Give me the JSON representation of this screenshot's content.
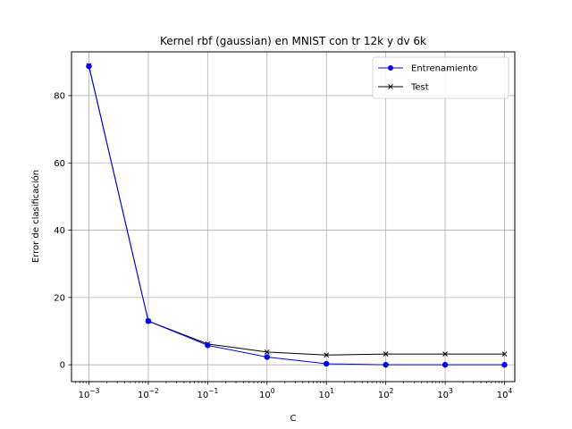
{
  "chart_data": {
    "type": "line",
    "title": "Kernel rbf (gaussian) en MNIST con tr 12k y dv 6k",
    "xlabel": "C",
    "ylabel": "Error de clasificación",
    "xscale": "log",
    "x": [
      0.001,
      0.01,
      0.1,
      1,
      10,
      100,
      1000,
      10000
    ],
    "x_tick_labels": [
      {
        "base": "10",
        "exp": "−3"
      },
      {
        "base": "10",
        "exp": "−2"
      },
      {
        "base": "10",
        "exp": "−1"
      },
      {
        "base": "10",
        "exp": "0"
      },
      {
        "base": "10",
        "exp": "1"
      },
      {
        "base": "10",
        "exp": "2"
      },
      {
        "base": "10",
        "exp": "3"
      },
      {
        "base": "10",
        "exp": "4"
      }
    ],
    "y_ticks": [
      0,
      20,
      40,
      60,
      80
    ],
    "ylim": [
      -5,
      93
    ],
    "grid": true,
    "legend_position": "upper right",
    "series": [
      {
        "name": "Entrenamiento",
        "color": "#0000ff",
        "marker": "circle",
        "values": [
          88.7,
          13.0,
          5.8,
          2.3,
          0.3,
          0.0,
          0.0,
          0.0
        ]
      },
      {
        "name": "Test",
        "color": "#000000",
        "marker": "x",
        "values": [
          88.9,
          13.0,
          6.2,
          3.8,
          2.9,
          3.2,
          3.2,
          3.2
        ]
      }
    ]
  }
}
